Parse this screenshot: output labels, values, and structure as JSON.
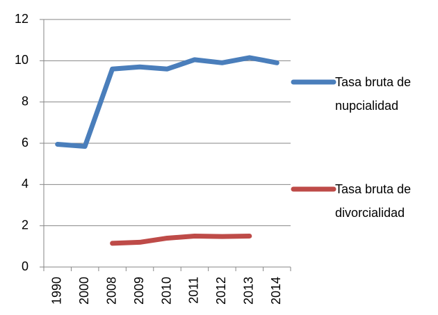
{
  "chart_data": {
    "type": "line",
    "categories": [
      "1990",
      "2000",
      "2008",
      "2009",
      "2010",
      "2011",
      "2012",
      "2013",
      "2014"
    ],
    "series": [
      {
        "name": "Tasa bruta de nupcialidad",
        "color": "#4a7ebb",
        "values": [
          5.95,
          5.85,
          9.6,
          9.7,
          9.6,
          10.05,
          9.9,
          10.15,
          9.9
        ]
      },
      {
        "name": "Tasa bruta de divorcialidad",
        "color": "#be4b48",
        "values": [
          null,
          null,
          1.15,
          1.2,
          1.4,
          1.5,
          1.48,
          1.5,
          null
        ]
      }
    ],
    "ylim": [
      0,
      12
    ],
    "yticks": [
      0,
      2,
      4,
      6,
      8,
      10,
      12
    ],
    "grid": true,
    "legend": "right"
  }
}
